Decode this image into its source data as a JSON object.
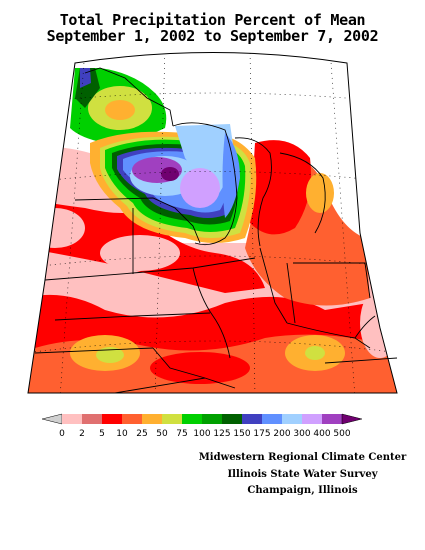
{
  "title": {
    "line1": "Total Precipitation Percent of Mean",
    "line2": "September 1, 2002 to September 7, 2002"
  },
  "legend": {
    "labels": [
      "0",
      "2",
      "5",
      "10",
      "25",
      "50",
      "75",
      "100",
      "125",
      "150",
      "175",
      "200",
      "300",
      "400",
      "500"
    ],
    "colors": [
      "#d0d0d0",
      "#ffc0c0",
      "#e07070",
      "#ff0000",
      "#ff6030",
      "#ffb030",
      "#d0e040",
      "#00d000",
      "#00a000",
      "#006000",
      "#4040c0",
      "#6090ff",
      "#a0d0ff",
      "#d0a0ff",
      "#a040c0",
      "#700070"
    ]
  },
  "credits": {
    "line1": "Midwestern Regional Climate Center",
    "line2": "Illinois State Water Survey",
    "line3": "Champaign, Illinois"
  }
}
